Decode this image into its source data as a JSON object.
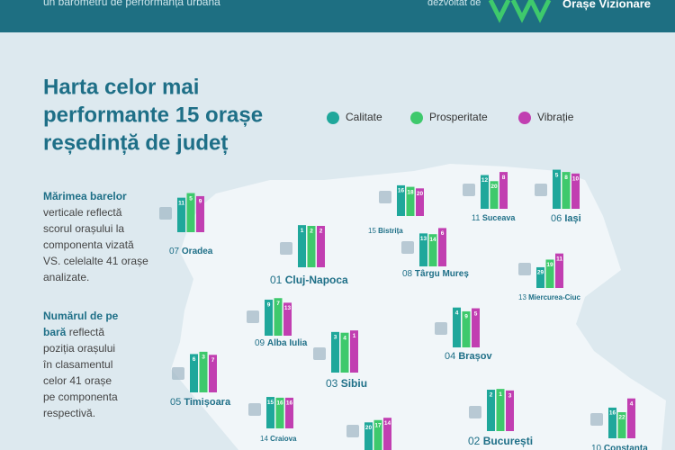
{
  "header": {
    "tagline": "un barometru de performanță urbană",
    "by": "dezvoltat de",
    "brand": "Orașe Vizionare"
  },
  "title": [
    "Harta celor mai",
    "performante 15 orașe",
    "reședință de județ"
  ],
  "legend": [
    {
      "name": "Calitate",
      "color": "#1fa79b"
    },
    {
      "name": "Prosperitate",
      "color": "#3ec96c"
    },
    {
      "name": "Vibrație",
      "color": "#c13fb1"
    }
  ],
  "notes": [
    {
      "bold": "Mărimea barelor",
      "lines": [
        "verticale reflectă",
        "scorul orașului la",
        "componenta vizată",
        "VS. celelalte 41 orașe",
        "analizate."
      ]
    },
    {
      "bold": "Numărul de pe",
      "bold2": "bară",
      "first": "reflectă",
      "lines": [
        "poziția orașului",
        "în clasamentul",
        "celor 41 orașe",
        "pe componenta",
        "respectivă."
      ]
    }
  ],
  "cities": [
    {
      "rank": "07",
      "name": "Oradea",
      "values": [
        11,
        5,
        9
      ]
    },
    {
      "rank": "01",
      "name": "Cluj-Napoca",
      "values": [
        1,
        2,
        2
      ]
    },
    {
      "rank": "15",
      "name": "Bistrița",
      "values": [
        16,
        18,
        20
      ]
    },
    {
      "rank": "11",
      "name": "Suceava",
      "values": [
        12,
        20,
        8
      ]
    },
    {
      "rank": "06",
      "name": "Iași",
      "values": [
        5,
        8,
        10
      ]
    },
    {
      "rank": "08",
      "name": "Târgu Mureș",
      "values": [
        13,
        14,
        6
      ]
    },
    {
      "rank": "13",
      "name": "Miercurea-Ciuc",
      "values": [
        29,
        19,
        11
      ]
    },
    {
      "rank": "09",
      "name": "Alba Iulia",
      "values": [
        9,
        7,
        13
      ]
    },
    {
      "rank": "03",
      "name": "Sibiu",
      "values": [
        3,
        4,
        1
      ]
    },
    {
      "rank": "04",
      "name": "Brașov",
      "values": [
        4,
        9,
        5
      ]
    },
    {
      "rank": "05",
      "name": "Timișoara",
      "values": [
        6,
        3,
        7
      ]
    },
    {
      "rank": "02",
      "name": "București",
      "values": [
        2,
        1,
        3
      ]
    },
    {
      "rank": "14",
      "name": "Craiova",
      "values": [
        15,
        16,
        16
      ]
    },
    {
      "rank": "10",
      "name": "Constanța",
      "values": [
        16,
        22,
        4
      ]
    },
    {
      "rank": null,
      "name": null,
      "values": [
        20,
        17,
        14
      ]
    }
  ]
}
